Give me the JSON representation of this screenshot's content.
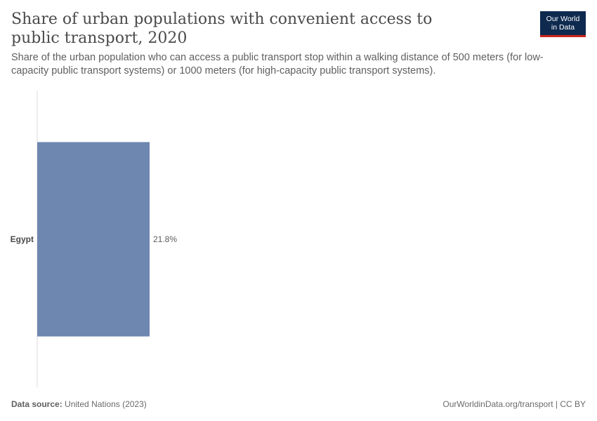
{
  "header": {
    "title": "Share of urban populations with convenient access to public transport, 2020",
    "subtitle": "Share of the urban population who can access a public transport stop within a walking distance of 500 meters (for low-capacity public transport systems) or 1000 meters (for high-capacity public transport systems)."
  },
  "logo": {
    "line1": "Our World",
    "line2": "in Data",
    "bg": "#0e2a4f",
    "accent": "#ce261e"
  },
  "footer": {
    "source_label": "Data source:",
    "source_value": "United Nations (2023)",
    "link": "OurWorldinData.org/transport | CC BY"
  },
  "chart_data": {
    "type": "bar",
    "orientation": "horizontal",
    "categories": [
      "Egypt"
    ],
    "values": [
      21.8
    ],
    "value_labels": [
      "21.8%"
    ],
    "unit": "%",
    "xlim": [
      0,
      100
    ],
    "bar_color": "#6e87b0",
    "grid": false
  }
}
